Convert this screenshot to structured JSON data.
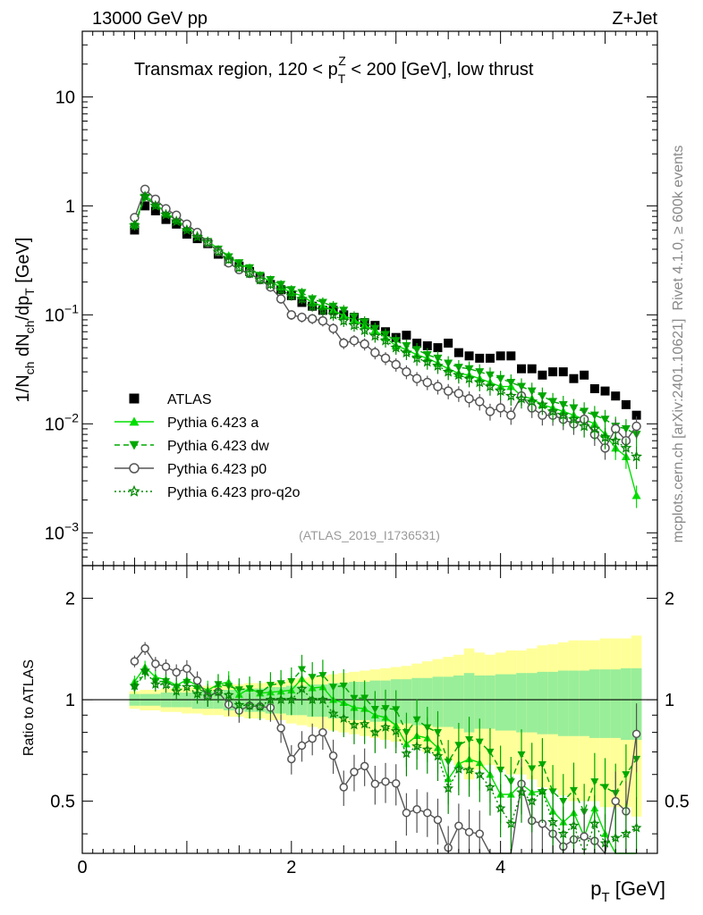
{
  "header": {
    "beam": "13000 GeV pp",
    "process": "Z+Jet",
    "side_rivet": "Rivet 4.1.0, ≥ 600k events",
    "side_mcplots": "mcplots.cern.ch [arXiv:2401.10621]",
    "analysis_id": "(ATLAS_2019_I1736531)"
  },
  "chart_data": [
    {
      "type": "scatter",
      "panel": "main",
      "title": "Transmax region, 120 < p_T^Z < 200 [GeV], low thrust",
      "title_parts": {
        "pre": "Transmax region, 120 < p",
        "sub": "T",
        "sup": "Z",
        "post": " < 200 [GeV], low thrust"
      },
      "ylabel": "1/N_ch dN_ch/dp_T [GeV]",
      "ylabel_parts": {
        "a": "1/N",
        "b": "ch",
        "c": " dN",
        "d": "ch",
        "e": "/dp",
        "f": "T",
        "g": " [GeV]"
      },
      "yscale": "log",
      "ylim": [
        0.0005,
        40
      ],
      "xlim": [
        0,
        5.5
      ],
      "y_ticks": [
        {
          "label": "10",
          "value": 10
        },
        {
          "label": "1",
          "value": 1
        },
        {
          "label": "10",
          "exp": "−1",
          "value": 0.1
        },
        {
          "label": "10",
          "exp": "−2",
          "value": 0.01
        },
        {
          "label": "10",
          "exp": "−3",
          "value": 0.001
        }
      ],
      "x": [
        0.5,
        0.6,
        0.7,
        0.8,
        0.9,
        1.0,
        1.1,
        1.2,
        1.3,
        1.4,
        1.5,
        1.6,
        1.7,
        1.8,
        1.9,
        2.0,
        2.1,
        2.2,
        2.3,
        2.4,
        2.5,
        2.6,
        2.7,
        2.8,
        2.9,
        3.0,
        3.1,
        3.2,
        3.3,
        3.4,
        3.5,
        3.6,
        3.7,
        3.8,
        3.9,
        4.0,
        4.1,
        4.2,
        4.3,
        4.4,
        4.5,
        4.6,
        4.7,
        4.8,
        4.9,
        5.0,
        5.1,
        5.2,
        5.3
      ],
      "series": [
        {
          "name": "ATLAS",
          "color": "#000000",
          "marker": "square",
          "values": [
            0.6,
            1.0,
            0.9,
            0.75,
            0.68,
            0.55,
            0.5,
            0.45,
            0.36,
            0.31,
            0.28,
            0.25,
            0.22,
            0.19,
            0.17,
            0.15,
            0.13,
            0.12,
            0.11,
            0.11,
            0.1,
            0.095,
            0.085,
            0.08,
            0.07,
            0.062,
            0.065,
            0.055,
            0.052,
            0.05,
            0.055,
            0.045,
            0.042,
            0.04,
            0.04,
            0.042,
            0.042,
            0.032,
            0.032,
            0.028,
            0.03,
            0.03,
            0.026,
            0.028,
            0.021,
            0.02,
            0.018,
            0.015,
            0.012
          ]
        },
        {
          "name": "Pythia 6.423 a",
          "color": "#00dd00",
          "marker": "triangle-up",
          "values": [
            0.68,
            1.25,
            1.05,
            0.86,
            0.75,
            0.63,
            0.55,
            0.48,
            0.4,
            0.35,
            0.29,
            0.27,
            0.23,
            0.2,
            0.18,
            0.16,
            0.15,
            0.13,
            0.12,
            0.11,
            0.098,
            0.09,
            0.08,
            0.072,
            0.062,
            0.052,
            0.048,
            0.043,
            0.04,
            0.036,
            0.032,
            0.029,
            0.028,
            0.026,
            0.024,
            0.022,
            0.022,
            0.018,
            0.017,
            0.015,
            0.014,
            0.013,
            0.012,
            0.011,
            0.01,
            0.008,
            0.006,
            0.005,
            0.0022
          ]
        },
        {
          "name": "Pythia 6.423 dw",
          "color": "#00a800",
          "marker": "triangle-down",
          "values": [
            0.65,
            1.2,
            1.02,
            0.85,
            0.74,
            0.62,
            0.54,
            0.47,
            0.4,
            0.34,
            0.3,
            0.27,
            0.23,
            0.21,
            0.19,
            0.17,
            0.16,
            0.14,
            0.13,
            0.12,
            0.11,
            0.096,
            0.086,
            0.075,
            0.066,
            0.058,
            0.052,
            0.048,
            0.043,
            0.04,
            0.036,
            0.033,
            0.032,
            0.03,
            0.028,
            0.026,
            0.024,
            0.022,
            0.02,
            0.018,
            0.016,
            0.015,
            0.014,
            0.013,
            0.012,
            0.011,
            0.0095,
            0.009,
            0.008
          ]
        },
        {
          "name": "Pythia 6.423 p0",
          "color": "#555555",
          "marker": "circle-open",
          "values": [
            0.78,
            1.42,
            1.15,
            0.94,
            0.82,
            0.68,
            0.57,
            0.46,
            0.38,
            0.3,
            0.26,
            0.24,
            0.21,
            0.18,
            0.14,
            0.1,
            0.095,
            0.092,
            0.088,
            0.075,
            0.055,
            0.058,
            0.054,
            0.045,
            0.04,
            0.035,
            0.03,
            0.026,
            0.024,
            0.022,
            0.02,
            0.019,
            0.017,
            0.016,
            0.013,
            0.014,
            0.012,
            0.018,
            0.014,
            0.012,
            0.012,
            0.011,
            0.01,
            0.011,
            0.008,
            0.006,
            0.009,
            0.007,
            0.0095
          ]
        },
        {
          "name": "Pythia 6.423 pro-q2o",
          "color": "#008800",
          "marker": "star-open",
          "values": [
            0.66,
            1.22,
            1.0,
            0.83,
            0.72,
            0.6,
            0.52,
            0.46,
            0.38,
            0.32,
            0.27,
            0.24,
            0.21,
            0.19,
            0.17,
            0.15,
            0.14,
            0.12,
            0.11,
            0.1,
            0.088,
            0.08,
            0.072,
            0.064,
            0.058,
            0.05,
            0.045,
            0.04,
            0.037,
            0.034,
            0.03,
            0.028,
            0.026,
            0.024,
            0.022,
            0.02,
            0.018,
            0.017,
            0.016,
            0.015,
            0.013,
            0.012,
            0.011,
            0.0095,
            0.009,
            0.0075,
            0.007,
            0.006,
            0.005
          ]
        }
      ]
    },
    {
      "type": "scatter",
      "panel": "ratio",
      "ylabel": "Ratio to ATLAS",
      "xlabel": "p_T [GeV]",
      "xlabel_parts": {
        "a": "p",
        "b": "T",
        "c": " [GeV]"
      },
      "ylim": [
        0.35,
        2.5
      ],
      "xlim": [
        0,
        5.5
      ],
      "reference_line": 1,
      "y_ticks": [
        {
          "label": "0.5",
          "value": 0.5
        },
        {
          "label": "1",
          "value": 1
        },
        {
          "label": "2",
          "value": 2
        }
      ],
      "x_ticks": [
        {
          "label": "0",
          "value": 0
        },
        {
          "label": "2",
          "value": 2
        },
        {
          "label": "4",
          "value": 4
        }
      ],
      "bands": {
        "stat_color": "#99ee99",
        "total_color": "#ffff99"
      },
      "band_stat_halfwidth": [
        0.04,
        0.04,
        0.04,
        0.05,
        0.05,
        0.05,
        0.06,
        0.06,
        0.06,
        0.07,
        0.07,
        0.08,
        0.08,
        0.09,
        0.09,
        0.1,
        0.1,
        0.11,
        0.11,
        0.12,
        0.12,
        0.13,
        0.13,
        0.14,
        0.14,
        0.15,
        0.15,
        0.16,
        0.16,
        0.17,
        0.17,
        0.18,
        0.2,
        0.18,
        0.18,
        0.19,
        0.19,
        0.2,
        0.2,
        0.21,
        0.21,
        0.22,
        0.22,
        0.22,
        0.23,
        0.23,
        0.23,
        0.24,
        0.24
      ],
      "band_total_halfwidth": [
        0.06,
        0.07,
        0.07,
        0.08,
        0.08,
        0.09,
        0.09,
        0.1,
        0.1,
        0.11,
        0.11,
        0.12,
        0.12,
        0.13,
        0.13,
        0.15,
        0.16,
        0.17,
        0.18,
        0.19,
        0.2,
        0.21,
        0.22,
        0.23,
        0.24,
        0.25,
        0.26,
        0.28,
        0.3,
        0.32,
        0.34,
        0.36,
        0.42,
        0.38,
        0.36,
        0.38,
        0.4,
        0.4,
        0.42,
        0.45,
        0.46,
        0.48,
        0.5,
        0.5,
        0.5,
        0.52,
        0.52,
        0.52,
        0.55
      ]
    }
  ]
}
